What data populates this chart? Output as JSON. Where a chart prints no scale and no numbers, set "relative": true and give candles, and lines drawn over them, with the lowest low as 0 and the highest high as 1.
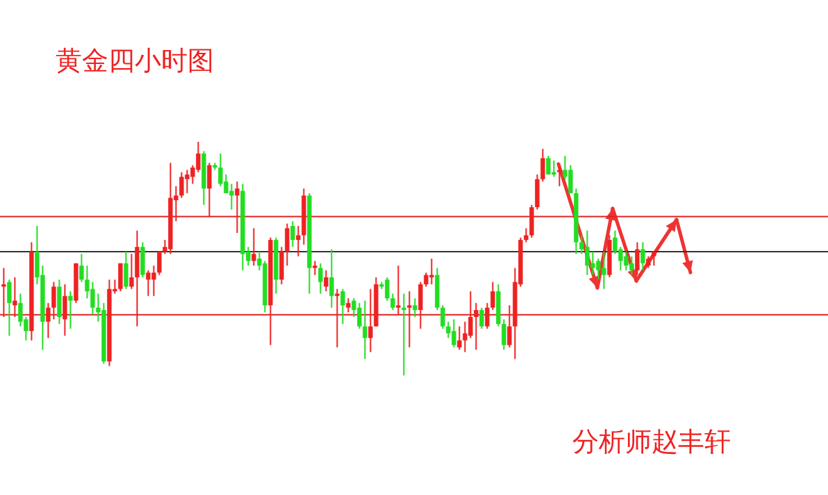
{
  "chart_data": {
    "type": "candlestick",
    "title": "黄金四小时图",
    "annotations": [
      "分析师赵丰轩"
    ],
    "relative": true,
    "categories": [
      null,
      null,
      null,
      null,
      null,
      null,
      null,
      null,
      null,
      null,
      null,
      null,
      null,
      null,
      null,
      null,
      null,
      null,
      null,
      null,
      null,
      null,
      null,
      null,
      null,
      null,
      null,
      null,
      null,
      null,
      null,
      null,
      null,
      null,
      null,
      null,
      null,
      null,
      null,
      null,
      null,
      null,
      null,
      null,
      null,
      null,
      null,
      null,
      null,
      null,
      null,
      null,
      null,
      null,
      null,
      null,
      null,
      null,
      null,
      null,
      null,
      null,
      null,
      null,
      null,
      null,
      null,
      null,
      null,
      null,
      null,
      null,
      null,
      null,
      null,
      null,
      null,
      null,
      null,
      null,
      null,
      null,
      null,
      null,
      null,
      null,
      null,
      null,
      null,
      null,
      null,
      null,
      null,
      null,
      null,
      null,
      null,
      null,
      null,
      null,
      null,
      null,
      null,
      null,
      null,
      null,
      null,
      null,
      null,
      null,
      null,
      null,
      null,
      null,
      null,
      null,
      null,
      null
    ],
    "ohlc": [
      [
        0.38,
        0.46,
        0.25,
        0.39
      ],
      [
        0.4,
        0.41,
        0.17,
        0.31
      ],
      [
        0.3,
        0.42,
        0.25,
        0.32
      ],
      [
        0.31,
        0.35,
        0.21,
        0.23
      ],
      [
        0.24,
        0.25,
        0.15,
        0.19
      ],
      [
        0.19,
        0.57,
        0.15,
        0.53
      ],
      [
        0.53,
        0.64,
        0.39,
        0.42
      ],
      [
        0.43,
        0.47,
        0.11,
        0.23
      ],
      [
        0.23,
        0.31,
        0.16,
        0.29
      ],
      [
        0.29,
        0.4,
        0.24,
        0.38
      ],
      [
        0.38,
        0.41,
        0.22,
        0.25
      ],
      [
        0.24,
        0.39,
        0.17,
        0.34
      ],
      [
        0.34,
        0.36,
        0.2,
        0.32
      ],
      [
        0.32,
        0.48,
        0.31,
        0.48
      ],
      [
        0.47,
        0.52,
        0.4,
        0.41
      ],
      [
        0.41,
        0.47,
        0.33,
        0.36
      ],
      [
        0.37,
        0.4,
        0.26,
        0.29
      ],
      [
        0.29,
        0.35,
        0.23,
        0.27
      ],
      [
        0.28,
        0.31,
        0.05,
        0.06
      ],
      [
        0.06,
        0.41,
        0.04,
        0.37
      ],
      [
        0.36,
        0.41,
        0.35,
        0.37
      ],
      [
        0.37,
        0.48,
        0.36,
        0.48
      ],
      [
        0.48,
        0.53,
        0.37,
        0.38
      ],
      [
        0.38,
        0.52,
        0.37,
        0.42
      ],
      [
        0.42,
        0.62,
        0.21,
        0.55
      ],
      [
        0.55,
        0.57,
        0.42,
        0.43
      ],
      [
        0.41,
        0.45,
        0.34,
        0.44
      ],
      [
        0.41,
        0.47,
        0.34,
        0.44
      ],
      [
        0.44,
        0.53,
        0.43,
        0.53
      ],
      [
        0.53,
        0.58,
        0.52,
        0.55
      ],
      [
        0.54,
        0.91,
        0.52,
        0.76
      ],
      [
        0.75,
        0.81,
        0.66,
        0.77
      ],
      [
        0.77,
        0.87,
        0.76,
        0.85
      ],
      [
        0.84,
        0.88,
        0.78,
        0.86
      ],
      [
        0.85,
        0.9,
        0.82,
        0.89
      ],
      [
        0.88,
        1.0,
        0.87,
        0.95
      ],
      [
        0.95,
        0.96,
        0.73,
        0.8
      ],
      [
        0.8,
        0.91,
        0.68,
        0.9
      ],
      [
        0.9,
        0.91,
        0.88,
        0.89
      ],
      [
        0.89,
        0.95,
        0.81,
        0.82
      ],
      [
        0.83,
        0.86,
        0.78,
        0.78
      ],
      [
        0.79,
        0.82,
        0.71,
        0.77
      ],
      [
        0.77,
        0.83,
        0.61,
        0.8
      ],
      [
        0.79,
        0.82,
        0.45,
        0.52
      ],
      [
        0.53,
        0.55,
        0.47,
        0.49
      ],
      [
        0.49,
        0.63,
        0.47,
        0.52
      ],
      [
        0.5,
        0.53,
        0.45,
        0.47
      ],
      [
        0.48,
        0.49,
        0.27,
        0.3
      ],
      [
        0.3,
        0.59,
        0.13,
        0.58
      ],
      [
        0.58,
        0.59,
        0.35,
        0.41
      ],
      [
        0.41,
        0.55,
        0.39,
        0.53
      ],
      [
        0.53,
        0.65,
        0.47,
        0.63
      ],
      [
        0.64,
        0.66,
        0.55,
        0.58
      ],
      [
        0.58,
        0.64,
        0.51,
        0.6
      ],
      [
        0.6,
        0.8,
        0.56,
        0.77
      ],
      [
        0.77,
        0.78,
        0.35,
        0.46
      ],
      [
        0.46,
        0.49,
        0.43,
        0.47
      ],
      [
        0.46,
        0.48,
        0.35,
        0.4
      ],
      [
        0.38,
        0.45,
        0.36,
        0.42
      ],
      [
        0.42,
        0.54,
        0.29,
        0.34
      ],
      [
        0.34,
        0.37,
        0.12,
        0.35
      ],
      [
        0.36,
        0.37,
        0.22,
        0.3
      ],
      [
        0.29,
        0.33,
        0.27,
        0.31
      ],
      [
        0.32,
        0.33,
        0.25,
        0.28
      ],
      [
        0.29,
        0.31,
        0.2,
        0.21
      ],
      [
        0.21,
        0.32,
        0.07,
        0.16
      ],
      [
        0.16,
        0.37,
        0.1,
        0.21
      ],
      [
        0.21,
        0.42,
        0.21,
        0.39
      ],
      [
        0.39,
        0.4,
        0.37,
        0.38
      ],
      [
        0.41,
        0.42,
        0.32,
        0.33
      ],
      [
        0.33,
        0.35,
        0.28,
        0.29
      ],
      [
        0.29,
        0.47,
        0.26,
        0.3
      ],
      [
        0.29,
        0.35,
        0,
        0.28
      ],
      [
        0.29,
        0.36,
        0.12,
        0.3
      ],
      [
        0.3,
        0.33,
        0.25,
        0.28
      ],
      [
        0.28,
        0.4,
        0.2,
        0.39
      ],
      [
        0.39,
        0.44,
        0.38,
        0.43
      ],
      [
        0.42,
        0.5,
        0.39,
        0.43
      ],
      [
        0.43,
        0.46,
        0.28,
        0.29
      ],
      [
        0.29,
        0.3,
        0.2,
        0.21
      ],
      [
        0.21,
        0.23,
        0.16,
        0.18
      ],
      [
        0.19,
        0.24,
        0.12,
        0.13
      ],
      [
        0.12,
        0.21,
        0.11,
        0.15
      ],
      [
        0.15,
        0.23,
        0.1,
        0.18
      ],
      [
        0.17,
        0.36,
        0.16,
        0.25
      ],
      [
        0.25,
        0.31,
        0.11,
        0.28
      ],
      [
        0.28,
        0.29,
        0.2,
        0.21
      ],
      [
        0.21,
        0.31,
        0.2,
        0.29
      ],
      [
        0.29,
        0.4,
        0.28,
        0.36
      ],
      [
        0.36,
        0.39,
        0.21,
        0.22
      ],
      [
        0.22,
        0.24,
        0.11,
        0.13
      ],
      [
        0.13,
        0.3,
        0.12,
        0.21
      ],
      [
        0.21,
        0.46,
        0.07,
        0.4
      ],
      [
        0.39,
        0.59,
        0.38,
        0.58
      ],
      [
        0.58,
        0.63,
        0.57,
        0.6
      ],
      [
        0.6,
        0.73,
        0.59,
        0.72
      ],
      [
        0.72,
        0.86,
        0.71,
        0.84
      ],
      [
        0.84,
        0.97,
        0.83,
        0.93
      ],
      [
        0.93,
        0.94,
        0.86,
        0.86
      ],
      [
        0.87,
        0.92,
        0.85,
        0.86
      ],
      [
        0.87,
        0.89,
        0.81,
        0.88
      ],
      [
        0.88,
        0.94,
        0.84,
        0.85
      ],
      [
        0.88,
        0.9,
        0.78,
        0.78
      ],
      [
        0.78,
        0.8,
        0.52,
        0.57
      ],
      [
        0.57,
        0.6,
        0.52,
        0.54
      ],
      [
        0.55,
        0.62,
        0.43,
        0.47
      ],
      [
        0.48,
        0.53,
        0.43,
        0.46
      ],
      [
        0.49,
        0.5,
        0.41,
        0.45
      ],
      [
        0.46,
        0.53,
        0.37,
        0.43
      ],
      [
        0.43,
        0.6,
        0.42,
        0.58
      ],
      [
        0.59,
        0.62,
        0.52,
        0.53
      ],
      [
        0.54,
        0.55,
        0.45,
        0.49
      ],
      [
        0.51,
        0.53,
        0.45,
        0.47
      ],
      [
        0.48,
        0.51,
        0.43,
        0.45
      ],
      [
        0.45,
        0.57,
        0.43,
        0.54
      ],
      [
        0.54,
        0.57,
        0.45,
        0.48
      ],
      [
        0.47,
        0.51,
        0.46,
        0.5
      ],
      [
        0.51,
        0.53,
        0.47,
        0.53
      ]
    ],
    "colors": [
      "#ee2222",
      "#22dd22",
      "#ee2222",
      "#22dd22",
      "#22dd22",
      "#ee2222",
      "#22dd22",
      "#22dd22",
      "#ee2222",
      "#ee2222",
      "#22dd22",
      "#ee2222",
      "#22dd22",
      "#ee2222",
      "#22dd22",
      "#22dd22",
      "#22dd22",
      "#22dd22",
      "#22dd22",
      "#ee2222",
      "#ee2222",
      "#ee2222",
      "#22dd22",
      "#ee2222",
      "#ee2222",
      "#22dd22",
      "#ee2222",
      "#ee2222",
      "#ee2222",
      "#ee2222",
      "#ee2222",
      "#ee2222",
      "#ee2222",
      "#ee2222",
      "#ee2222",
      "#ee2222",
      "#22dd22",
      "#ee2222",
      "#22dd22",
      "#22dd22",
      "#22dd22",
      "#22dd22",
      "#ee2222",
      "#22dd22",
      "#22dd22",
      "#ee2222",
      "#22dd22",
      "#22dd22",
      "#ee2222",
      "#22dd22",
      "#ee2222",
      "#ee2222",
      "#22dd22",
      "#ee2222",
      "#ee2222",
      "#22dd22",
      "#ee2222",
      "#22dd22",
      "#ee2222",
      "#22dd22",
      "#ee2222",
      "#22dd22",
      "#ee2222",
      "#22dd22",
      "#22dd22",
      "#22dd22",
      "#ee2222",
      "#ee2222",
      "#22dd22",
      "#22dd22",
      "#22dd22",
      "#ee2222",
      "#22dd22",
      "#ee2222",
      "#22dd22",
      "#ee2222",
      "#ee2222",
      "#ee2222",
      "#22dd22",
      "#22dd22",
      "#22dd22",
      "#22dd22",
      "#ee2222",
      "#ee2222",
      "#ee2222",
      "#ee2222",
      "#22dd22",
      "#ee2222",
      "#ee2222",
      "#22dd22",
      "#22dd22",
      "#ee2222",
      "#ee2222",
      "#ee2222",
      "#ee2222",
      "#ee2222",
      "#ee2222",
      "#ee2222",
      "#22dd22",
      "#22dd22",
      "#ee2222",
      "#22dd22",
      "#22dd22",
      "#22dd22",
      "#22dd22",
      "#22dd22",
      "#22dd22",
      "#22dd22",
      "#22dd22",
      "#ee2222",
      "#22dd22",
      "#22dd22",
      "#22dd22",
      "#22dd22",
      "#ee2222",
      "#22dd22",
      "#ee2222",
      "#ee2222"
    ],
    "ref_lines": [
      {
        "axis": "y",
        "value": 0.68,
        "color": "#dd2222"
      },
      {
        "axis": "y",
        "value": 0.53,
        "color": "#333333"
      },
      {
        "axis": "y",
        "value": 0.26,
        "color": "#dd2222"
      }
    ]
  }
}
